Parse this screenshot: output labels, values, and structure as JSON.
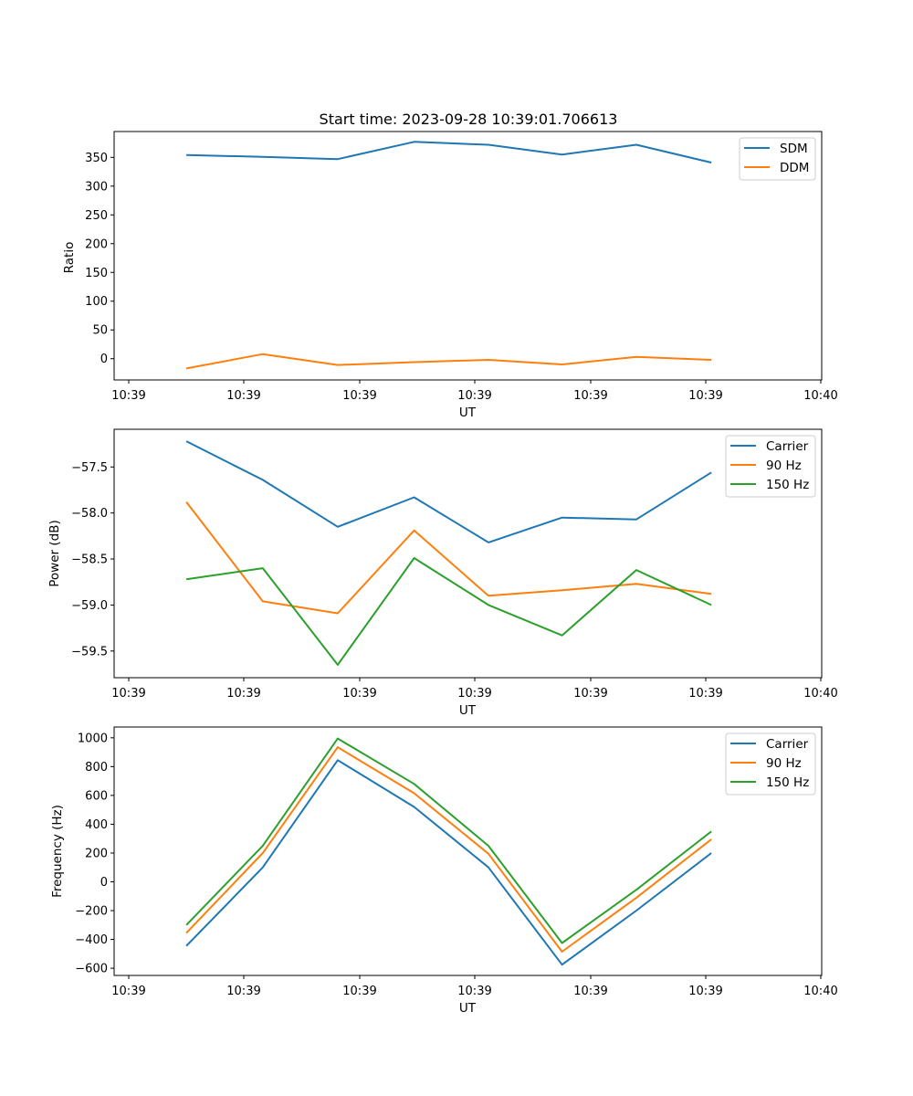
{
  "chart_data": [
    {
      "type": "line",
      "title": "Start time: 2023-09-28 10:39:01.706613",
      "xlabel": "UT",
      "ylabel": "Ratio",
      "x_tick_labels": [
        "10:39",
        "10:39",
        "10:39",
        "10:39",
        "10:39",
        "10:39",
        "10:40"
      ],
      "y_ticks": [
        0,
        50,
        100,
        150,
        200,
        250,
        300,
        350
      ],
      "ylim": [
        -37,
        395
      ],
      "xlim": [
        0,
        1
      ],
      "x": [
        0.102,
        0.21,
        0.316,
        0.424,
        0.529,
        0.633,
        0.738,
        0.844
      ],
      "legend_position": "top-right",
      "series": [
        {
          "name": "SDM",
          "color": "#1f77b4",
          "values": [
            354,
            351,
            347,
            377,
            372,
            355,
            372,
            341
          ]
        },
        {
          "name": "DDM",
          "color": "#ff7f0e",
          "values": [
            -17,
            8,
            -11,
            -6,
            -2,
            -10,
            3,
            -2
          ]
        }
      ]
    },
    {
      "type": "line",
      "title": "",
      "xlabel": "UT",
      "ylabel": "Power (dB)",
      "x_tick_labels": [
        "10:39",
        "10:39",
        "10:39",
        "10:39",
        "10:39",
        "10:39",
        "10:40"
      ],
      "y_ticks": [
        -57.5,
        -58.0,
        -58.5,
        -59.0,
        -59.5
      ],
      "y_tick_labels": [
        "−57.5",
        "−58.0",
        "−58.5",
        "−59.0",
        "−59.5"
      ],
      "ylim": [
        -59.79,
        -57.09
      ],
      "xlim": [
        0,
        1
      ],
      "x": [
        0.102,
        0.21,
        0.316,
        0.424,
        0.529,
        0.633,
        0.738,
        0.844
      ],
      "legend_position": "top-right",
      "series": [
        {
          "name": "Carrier",
          "color": "#1f77b4",
          "values": [
            -57.22,
            -57.64,
            -58.15,
            -57.83,
            -58.32,
            -58.05,
            -58.07,
            -57.56
          ]
        },
        {
          "name": "90 Hz",
          "color": "#ff7f0e",
          "values": [
            -57.88,
            -58.96,
            -59.09,
            -58.19,
            -58.9,
            -58.84,
            -58.77,
            -58.88
          ]
        },
        {
          "name": "150 Hz",
          "color": "#2ca02c",
          "values": [
            -58.72,
            -58.6,
            -59.65,
            -58.49,
            -59.0,
            -59.33,
            -58.62,
            -59.0
          ]
        }
      ]
    },
    {
      "type": "line",
      "title": "",
      "xlabel": "UT",
      "ylabel": "Frequency (Hz)",
      "x_tick_labels": [
        "10:39",
        "10:39",
        "10:39",
        "10:39",
        "10:39",
        "10:39",
        "10:40"
      ],
      "y_ticks": [
        1000,
        800,
        600,
        400,
        200,
        0,
        -200,
        -400,
        -600
      ],
      "y_tick_labels": [
        "1000",
        "800",
        "600",
        "400",
        "200",
        "0",
        "−200",
        "−400",
        "−600"
      ],
      "ylim": [
        -650,
        1075
      ],
      "xlim": [
        0,
        1
      ],
      "x": [
        0.102,
        0.21,
        0.316,
        0.424,
        0.529,
        0.633,
        0.738,
        0.844
      ],
      "legend_position": "top-right",
      "series": [
        {
          "name": "Carrier",
          "color": "#1f77b4",
          "values": [
            -445,
            100,
            845,
            520,
            100,
            -575,
            -200,
            200
          ]
        },
        {
          "name": "90 Hz",
          "color": "#ff7f0e",
          "values": [
            -355,
            200,
            935,
            615,
            195,
            -485,
            -110,
            295
          ]
        },
        {
          "name": "150 Hz",
          "color": "#2ca02c",
          "values": [
            -300,
            250,
            995,
            680,
            250,
            -425,
            -55,
            350
          ]
        }
      ]
    }
  ]
}
